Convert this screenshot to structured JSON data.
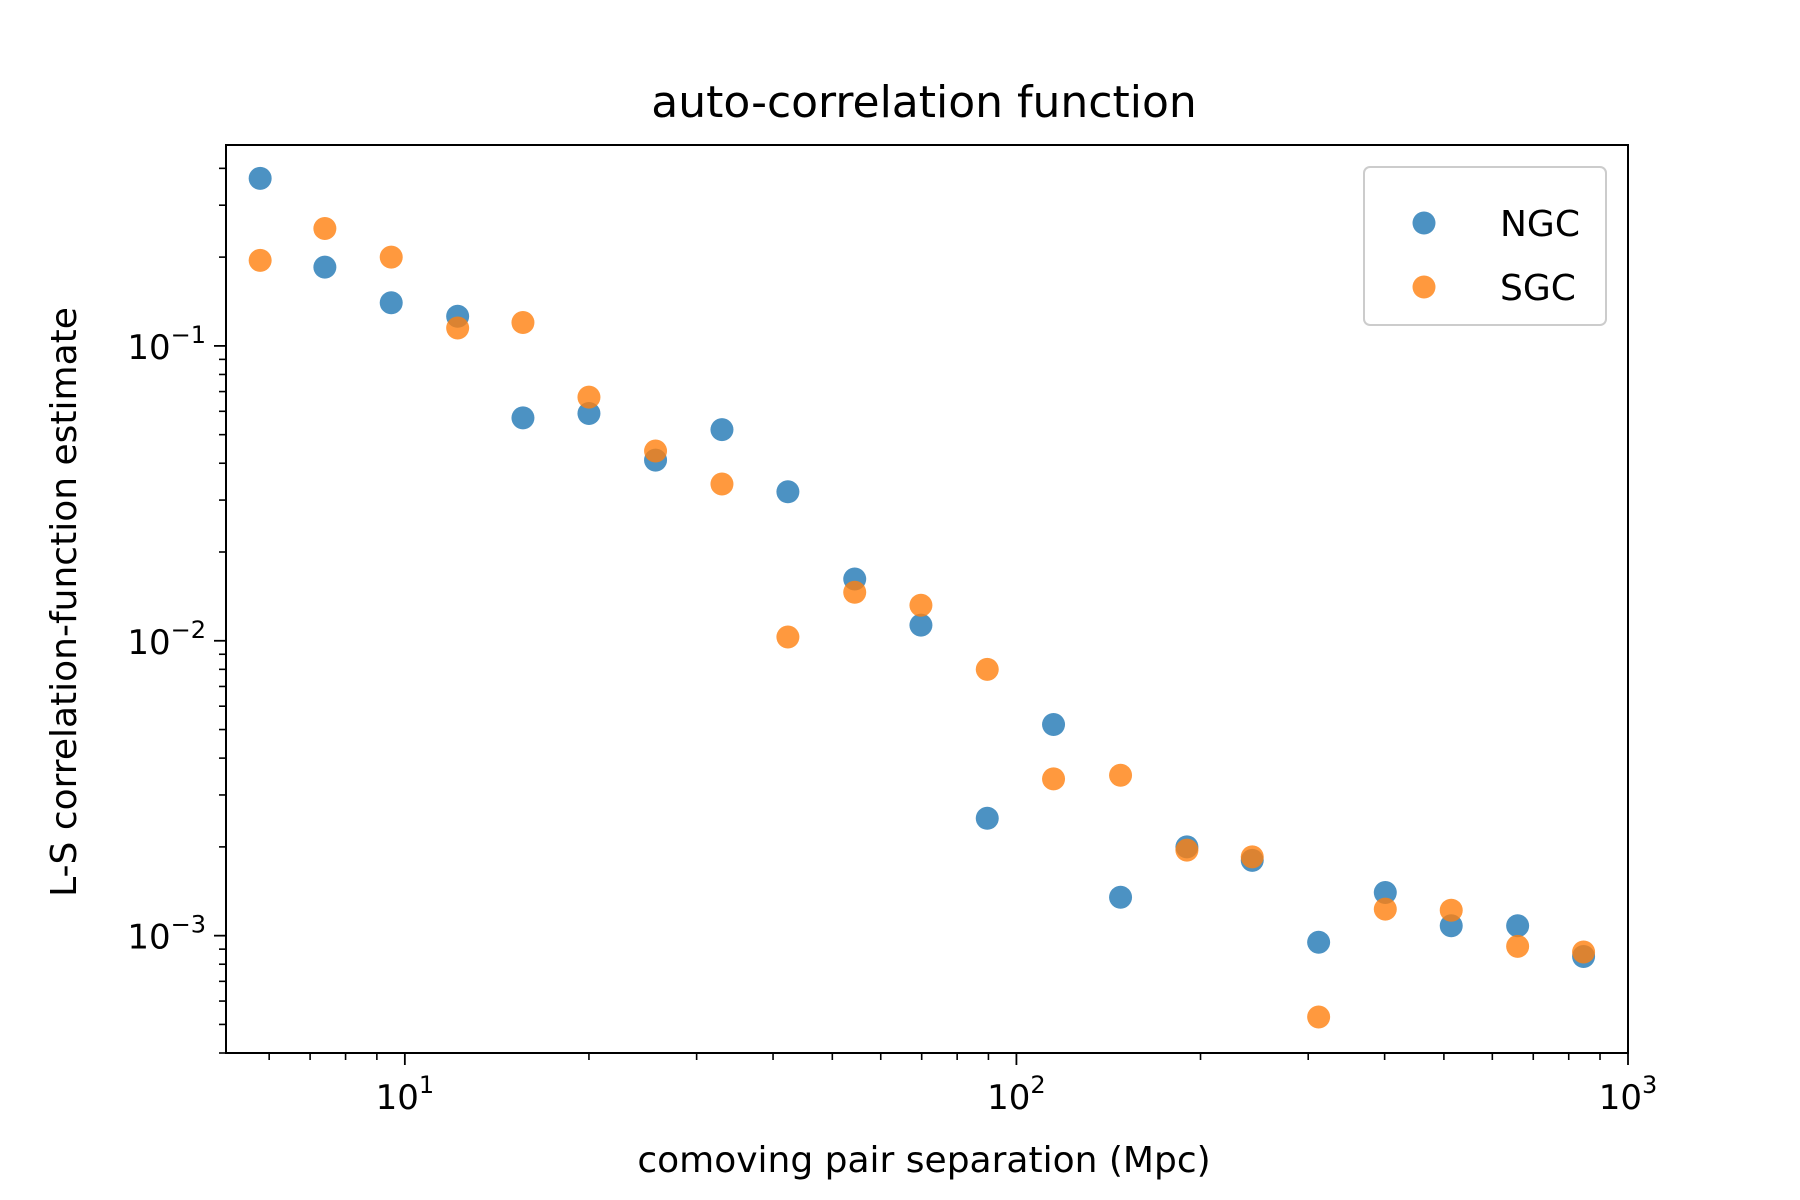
{
  "chart_data": {
    "type": "scatter",
    "title": "auto-correlation function",
    "xlabel": "comoving pair separation (Mpc)",
    "ylabel": "L-S correlation-function estimate",
    "xscale": "log",
    "yscale": "log",
    "xlim": [
      5.1,
      1000
    ],
    "ylim": [
      0.0004,
      0.48
    ],
    "grid": false,
    "legend": "top-right",
    "x_ticks": [
      {
        "value": 10,
        "base": "10",
        "exp": "1"
      },
      {
        "value": 100,
        "base": "10",
        "exp": "2"
      },
      {
        "value": 1000,
        "base": "10",
        "exp": "3"
      }
    ],
    "y_ticks": [
      {
        "value": 0.1,
        "base": "10",
        "exp": "−1"
      },
      {
        "value": 0.01,
        "base": "10",
        "exp": "−2"
      },
      {
        "value": 0.001,
        "base": "10",
        "exp": "−3"
      }
    ],
    "x": [
      5.8,
      7.4,
      9.5,
      12.2,
      15.6,
      20.0,
      25.7,
      33.0,
      42.3,
      54.4,
      69.8,
      89.6,
      115.0,
      148.0,
      190.0,
      243.0,
      312.0,
      401.0,
      514.0,
      660.0,
      846.0
    ],
    "series": [
      {
        "name": "NGC",
        "color": "#1f77b4",
        "values": [
          0.37,
          0.185,
          0.14,
          0.126,
          0.057,
          0.059,
          0.041,
          0.052,
          0.032,
          0.0162,
          0.0113,
          0.0025,
          0.0052,
          0.00135,
          0.002,
          0.0018,
          0.00095,
          0.0014,
          0.00108,
          0.00108,
          0.00085
        ]
      },
      {
        "name": "SGC",
        "color": "#ff7f0e",
        "values": [
          0.195,
          0.25,
          0.2,
          0.115,
          0.12,
          0.067,
          0.044,
          0.034,
          0.0103,
          0.0146,
          0.0132,
          0.008,
          0.0034,
          0.0035,
          0.00195,
          0.00185,
          0.00053,
          0.00123,
          0.00122,
          0.00092,
          0.00088
        ]
      }
    ]
  }
}
